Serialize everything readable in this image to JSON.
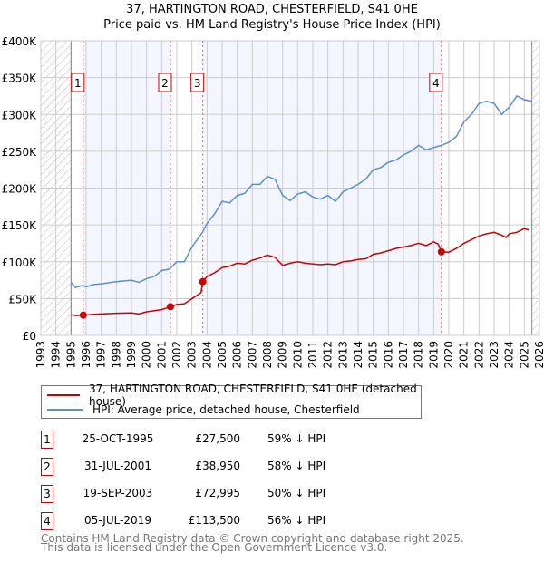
{
  "chart_data": {
    "type": "line",
    "title": "37, HARTINGTON ROAD, CHESTERFIELD, S41 0HE",
    "subtitle": "Price paid vs. HM Land Registry's House Price Index (HPI)",
    "xlim": [
      1993,
      2026
    ],
    "ylim": [
      0,
      400000
    ],
    "x_ticks": [
      "1993",
      "1994",
      "1995",
      "1996",
      "1997",
      "1998",
      "1999",
      "2000",
      "2001",
      "2002",
      "2003",
      "2004",
      "2005",
      "2006",
      "2007",
      "2008",
      "2009",
      "2010",
      "2011",
      "2012",
      "2013",
      "2014",
      "2015",
      "2016",
      "2017",
      "2018",
      "2019",
      "2020",
      "2021",
      "2022",
      "2023",
      "2024",
      "2025",
      "2026"
    ],
    "y_ticks": [
      {
        "v": 0,
        "label": "£0"
      },
      {
        "v": 50000,
        "label": "£50K"
      },
      {
        "v": 100000,
        "label": "£100K"
      },
      {
        "v": 150000,
        "label": "£150K"
      },
      {
        "v": 200000,
        "label": "£200K"
      },
      {
        "v": 250000,
        "label": "£250K"
      },
      {
        "v": 300000,
        "label": "£300K"
      },
      {
        "v": 350000,
        "label": "£350K"
      },
      {
        "v": 400000,
        "label": "£400K"
      }
    ],
    "grid": true,
    "hatched_ranges": [
      [
        1993,
        1995
      ],
      [
        2025.5,
        2026
      ]
    ],
    "series": [
      {
        "name": "37, HARTINGTON ROAD, CHESTERFIELD, S41 0HE (detached house)",
        "color": "#cc0000",
        "x": [
          1995,
          1995.3,
          1995.81,
          1996.5,
          1997,
          1998,
          1999,
          1999.5,
          2000,
          2001,
          2001.58,
          2002,
          2002.5,
          2003.6,
          2003.72,
          2004,
          2004.5,
          2005,
          2005.5,
          2006,
          2006.5,
          2007,
          2007.5,
          2008,
          2008.5,
          2009,
          2009.5,
          2010,
          2010.5,
          2011,
          2011.5,
          2012,
          2012.5,
          2013,
          2013.5,
          2014,
          2014.5,
          2015,
          2015.5,
          2016,
          2016.5,
          2017,
          2017.5,
          2018,
          2018.5,
          2019,
          2019.3,
          2019.51,
          2020,
          2020.5,
          2021,
          2021.5,
          2022,
          2022.5,
          2023,
          2023.5,
          2023.8,
          2024,
          2024.5,
          2025,
          2025.3
        ],
        "y": [
          28000,
          27000,
          27500,
          28500,
          29000,
          30000,
          30500,
          29000,
          32000,
          35000,
          38950,
          42000,
          43000,
          58000,
          72995,
          80000,
          85000,
          92000,
          94000,
          98000,
          97000,
          102000,
          105000,
          109000,
          106000,
          95000,
          98000,
          100000,
          98000,
          97000,
          96000,
          97000,
          96000,
          100000,
          101000,
          103000,
          104000,
          110000,
          112000,
          115000,
          118000,
          120000,
          122000,
          125000,
          122000,
          127000,
          124000,
          113500,
          113000,
          118000,
          125000,
          130000,
          135000,
          138000,
          140000,
          136000,
          133000,
          138000,
          140000,
          145000,
          143000
        ]
      },
      {
        "name": "HPI: Average price, detached house, Chesterfield",
        "color": "#5b8ed6",
        "x": [
          1995,
          1995.3,
          1995.8,
          1996,
          1996.5,
          1997,
          1998,
          1999,
          1999.5,
          2000,
          2000.5,
          2001,
          2001.5,
          2002,
          2002.5,
          2003,
          2003.7,
          2004,
          2004.5,
          2005,
          2005.5,
          2006,
          2006.5,
          2007,
          2007.5,
          2008,
          2008.5,
          2009,
          2009.5,
          2010,
          2010.5,
          2011,
          2011.5,
          2012,
          2012.5,
          2013,
          2013.5,
          2014,
          2014.5,
          2015,
          2015.5,
          2016,
          2016.5,
          2017,
          2017.5,
          2018,
          2018.5,
          2019,
          2019.5,
          2020,
          2020.5,
          2021,
          2021.5,
          2022,
          2022.5,
          2023,
          2023.5,
          2024,
          2024.5,
          2025,
          2025.5
        ],
        "y": [
          72000,
          65000,
          68000,
          66000,
          69000,
          70000,
          73000,
          75000,
          72000,
          77000,
          80000,
          88000,
          90000,
          100000,
          100000,
          120000,
          140000,
          152000,
          165000,
          182000,
          180000,
          190000,
          193000,
          205000,
          205000,
          216000,
          212000,
          190000,
          183000,
          192000,
          195000,
          188000,
          185000,
          190000,
          182000,
          195000,
          200000,
          205000,
          212000,
          225000,
          228000,
          235000,
          238000,
          245000,
          250000,
          258000,
          252000,
          255000,
          258000,
          262000,
          270000,
          290000,
          300000,
          315000,
          318000,
          315000,
          300000,
          310000,
          325000,
          320000,
          318000
        ]
      }
    ],
    "sales": [
      {
        "n": "1",
        "x": 1995.81,
        "y": 27500
      },
      {
        "n": "2",
        "x": 2001.58,
        "y": 38950
      },
      {
        "n": "3",
        "x": 2003.72,
        "y": 72995
      },
      {
        "n": "4",
        "x": 2019.51,
        "y": 113500
      }
    ]
  },
  "legend": {
    "property": "37, HARTINGTON ROAD, CHESTERFIELD, S41 0HE (detached house)",
    "hpi": "HPI: Average price, detached house, Chesterfield"
  },
  "transactions": [
    {
      "n": "1",
      "date": "25-OCT-1995",
      "price": "£27,500",
      "hpi": "59% ↓ HPI"
    },
    {
      "n": "2",
      "date": "31-JUL-2001",
      "price": "£38,950",
      "hpi": "58% ↓ HPI"
    },
    {
      "n": "3",
      "date": "19-SEP-2003",
      "price": "£72,995",
      "hpi": "50% ↓ HPI"
    },
    {
      "n": "4",
      "date": "05-JUL-2019",
      "price": "£113,500",
      "hpi": "56% ↓ HPI"
    }
  ],
  "footer": {
    "line1": "Contains HM Land Registry data © Crown copyright and database right 2025.",
    "line2": "This data is licensed under the Open Government Licence v3.0."
  }
}
